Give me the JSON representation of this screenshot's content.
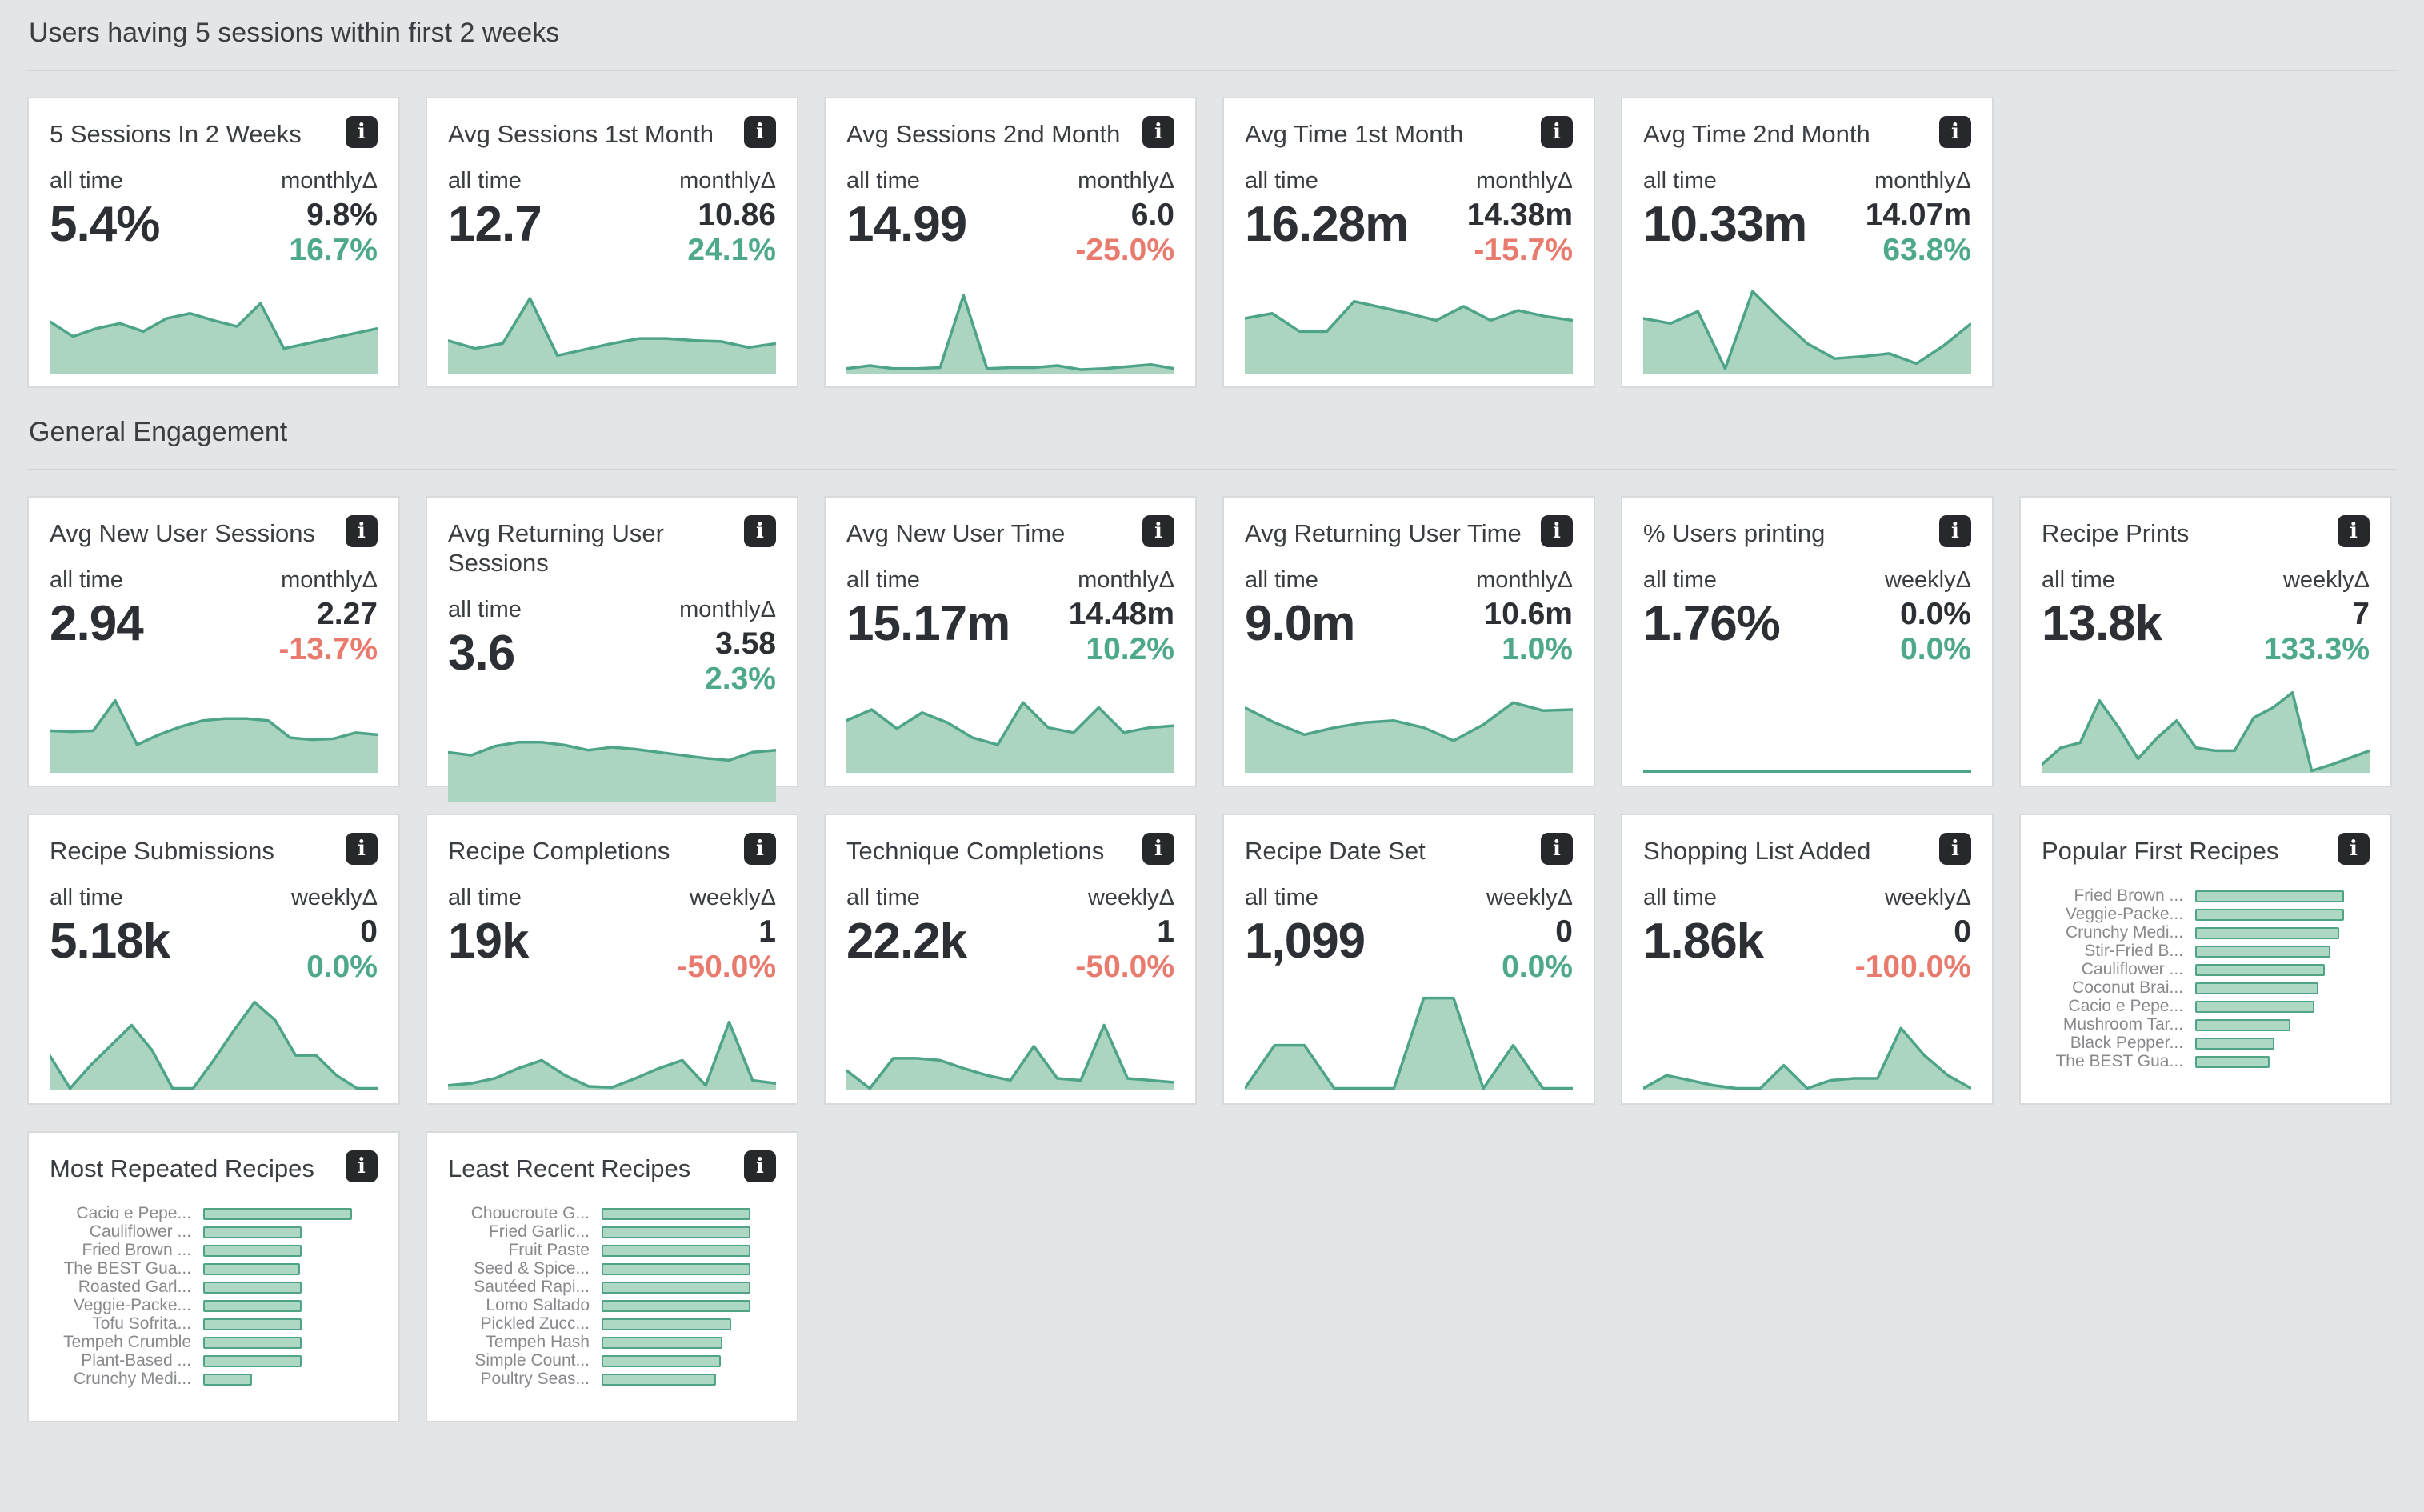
{
  "page": {
    "background": "#e4e5e7"
  },
  "colors": {
    "spark_stroke": "#4ea487",
    "spark_fill": "#abd4c1",
    "positive": "#4ea98a",
    "negative": "#e87a6e",
    "bar_fill": "#aed8c4",
    "bar_border": "#4fa485",
    "card_bg": "#ffffff",
    "text_dark": "#2c2f34",
    "text_label": "#3a3d41",
    "bar_label_gray": "#87898d"
  },
  "icons": {
    "info": "i"
  },
  "sections": [
    {
      "title": "Users having 5 sessions within first 2 weeks",
      "cards": [
        {
          "title": "5 Sessions In 2 Weeks",
          "period_label": "all time",
          "value": "5.4%",
          "delta_label": "monthlyΔ",
          "delta_value": "9.8%",
          "delta_pct": "16.7%",
          "delta_direction": "up",
          "chart": {
            "type": "area",
            "values": [
              0.52,
              0.37,
              0.45,
              0.5,
              0.42,
              0.55,
              0.6,
              0.53,
              0.47,
              0.7,
              0.25,
              0.3,
              0.35,
              0.4,
              0.45
            ]
          }
        },
        {
          "title": "Avg Sessions 1st Month",
          "period_label": "all time",
          "value": "12.7",
          "delta_label": "monthlyΔ",
          "delta_value": "10.86",
          "delta_pct": "24.1%",
          "delta_direction": "up",
          "chart": {
            "type": "area",
            "values": [
              0.33,
              0.25,
              0.3,
              0.75,
              0.18,
              0.24,
              0.3,
              0.35,
              0.35,
              0.33,
              0.32,
              0.26,
              0.3
            ]
          }
        },
        {
          "title": "Avg Sessions 2nd Month",
          "period_label": "all time",
          "value": "14.99",
          "delta_label": "monthlyΔ",
          "delta_value": "6.0",
          "delta_pct": "-25.0%",
          "delta_direction": "down",
          "chart": {
            "type": "area",
            "values": [
              0.05,
              0.08,
              0.05,
              0.05,
              0.06,
              0.78,
              0.05,
              0.06,
              0.06,
              0.08,
              0.04,
              0.05,
              0.07,
              0.09,
              0.05
            ]
          }
        },
        {
          "title": "Avg Time 1st Month",
          "period_label": "all time",
          "value": "16.28m",
          "delta_label": "monthlyΔ",
          "delta_value": "14.38m",
          "delta_pct": "-15.7%",
          "delta_direction": "down",
          "chart": {
            "type": "area",
            "values": [
              0.55,
              0.6,
              0.42,
              0.42,
              0.72,
              0.66,
              0.6,
              0.53,
              0.67,
              0.53,
              0.63,
              0.57,
              0.53
            ]
          }
        },
        {
          "title": "Avg Time 2nd Month",
          "period_label": "all time",
          "value": "10.33m",
          "delta_label": "monthlyΔ",
          "delta_value": "14.07m",
          "delta_pct": "63.8%",
          "delta_direction": "up",
          "chart": {
            "type": "area",
            "values": [
              0.55,
              0.5,
              0.62,
              0.05,
              0.82,
              0.55,
              0.3,
              0.15,
              0.17,
              0.2,
              0.1,
              0.28,
              0.5
            ]
          }
        }
      ]
    },
    {
      "title": "General Engagement",
      "cards": [
        {
          "title": "Avg New User Sessions",
          "period_label": "all time",
          "value": "2.94",
          "delta_label": "monthlyΔ",
          "delta_value": "2.27",
          "delta_pct": "-13.7%",
          "delta_direction": "down",
          "chart": {
            "type": "area",
            "values": [
              0.42,
              0.41,
              0.42,
              0.72,
              0.28,
              0.38,
              0.46,
              0.52,
              0.54,
              0.54,
              0.52,
              0.35,
              0.33,
              0.34,
              0.4,
              0.38
            ]
          }
        },
        {
          "title": "Avg Returning User Sessions",
          "period_label": "all time",
          "value": "3.6",
          "delta_label": "monthlyΔ",
          "delta_value": "3.58",
          "delta_pct": "2.3%",
          "delta_direction": "up",
          "chart": {
            "type": "area",
            "values": [
              0.5,
              0.47,
              0.56,
              0.6,
              0.6,
              0.57,
              0.52,
              0.55,
              0.53,
              0.5,
              0.47,
              0.44,
              0.42,
              0.5,
              0.52
            ]
          }
        },
        {
          "title": "Avg New User Time",
          "period_label": "all time",
          "value": "15.17m",
          "delta_label": "monthlyΔ",
          "delta_value": "14.48m",
          "delta_pct": "10.2%",
          "delta_direction": "up",
          "chart": {
            "type": "area",
            "values": [
              0.52,
              0.63,
              0.44,
              0.6,
              0.5,
              0.35,
              0.28,
              0.7,
              0.45,
              0.4,
              0.65,
              0.4,
              0.45,
              0.47
            ]
          }
        },
        {
          "title": "Avg Returning User Time",
          "period_label": "all time",
          "value": "9.0m",
          "delta_label": "monthlyΔ",
          "delta_value": "10.6m",
          "delta_pct": "1.0%",
          "delta_direction": "up",
          "chart": {
            "type": "area",
            "values": [
              0.65,
              0.5,
              0.38,
              0.45,
              0.5,
              0.52,
              0.45,
              0.32,
              0.48,
              0.7,
              0.62,
              0.63
            ]
          }
        },
        {
          "title": "% Users printing",
          "period_label": "all time",
          "value": "1.76%",
          "delta_label": "weeklyΔ",
          "delta_value": "0.0%",
          "delta_pct": "0.0%",
          "delta_direction": "up",
          "chart": {
            "type": "area",
            "values": [
              0.01,
              0.01,
              0.01,
              0.01,
              0.01,
              0.01,
              0.01,
              0.01,
              0.01,
              0.01,
              0.01,
              0.01
            ]
          }
        },
        {
          "title": "Recipe Prints",
          "period_label": "all time",
          "value": "13.8k",
          "delta_label": "weeklyΔ",
          "delta_value": "7",
          "delta_pct": "133.3%",
          "delta_direction": "up",
          "chart": {
            "type": "area",
            "values": [
              0.08,
              0.25,
              0.3,
              0.72,
              0.45,
              0.14,
              0.35,
              0.52,
              0.25,
              0.22,
              0.22,
              0.55,
              0.65,
              0.8,
              0.02,
              0.08,
              0.15,
              0.22
            ]
          }
        },
        {
          "title": "Recipe Submissions",
          "period_label": "all time",
          "value": "5.18k",
          "delta_label": "weeklyΔ",
          "delta_value": "0",
          "delta_pct": "0.0%",
          "delta_direction": "up",
          "chart": {
            "type": "area",
            "values": [
              0.35,
              0.02,
              0.25,
              0.45,
              0.65,
              0.4,
              0.02,
              0.02,
              0.3,
              0.6,
              0.88,
              0.7,
              0.35,
              0.35,
              0.15,
              0.02,
              0.02
            ]
          }
        },
        {
          "title": "Recipe Completions",
          "period_label": "all time",
          "value": "19k",
          "delta_label": "weeklyΔ",
          "delta_value": "1",
          "delta_pct": "-50.0%",
          "delta_direction": "down",
          "chart": {
            "type": "area",
            "values": [
              0.05,
              0.07,
              0.12,
              0.22,
              0.3,
              0.15,
              0.04,
              0.03,
              0.12,
              0.22,
              0.3,
              0.05,
              0.68,
              0.1,
              0.07
            ]
          }
        },
        {
          "title": "Technique Completions",
          "period_label": "all time",
          "value": "22.2k",
          "delta_label": "weeklyΔ",
          "delta_value": "1",
          "delta_pct": "-50.0%",
          "delta_direction": "down",
          "chart": {
            "type": "area",
            "values": [
              0.2,
              0.02,
              0.32,
              0.32,
              0.3,
              0.22,
              0.15,
              0.1,
              0.44,
              0.12,
              0.1,
              0.65,
              0.12,
              0.1,
              0.08
            ]
          }
        },
        {
          "title": "Recipe Date Set",
          "period_label": "all time",
          "value": "1,099",
          "delta_label": "weeklyΔ",
          "delta_value": "0",
          "delta_pct": "0.0%",
          "delta_direction": "up",
          "chart": {
            "type": "area",
            "values": [
              0.02,
              0.45,
              0.45,
              0.02,
              0.02,
              0.02,
              0.92,
              0.92,
              0.02,
              0.45,
              0.02,
              0.02
            ]
          }
        },
        {
          "title": "Shopping List Added",
          "period_label": "all time",
          "value": "1.86k",
          "delta_label": "weeklyΔ",
          "delta_value": "0",
          "delta_pct": "-100.0%",
          "delta_direction": "down",
          "chart": {
            "type": "area",
            "values": [
              0.02,
              0.15,
              0.1,
              0.05,
              0.02,
              0.02,
              0.25,
              0.02,
              0.1,
              0.12,
              0.12,
              0.62,
              0.35,
              0.15,
              0.02
            ]
          }
        },
        {
          "title": "Popular First Recipes",
          "chart": {
            "type": "bars",
            "items": [
              {
                "label": "Fried Brown ...",
                "value": 1.0
              },
              {
                "label": "Veggie-Packe...",
                "value": 1.0
              },
              {
                "label": "Crunchy Medi...",
                "value": 0.97
              },
              {
                "label": "Stir-Fried B...",
                "value": 0.91
              },
              {
                "label": "Cauliflower ...",
                "value": 0.87
              },
              {
                "label": "Coconut Brai...",
                "value": 0.83
              },
              {
                "label": "Cacio e Pepe...",
                "value": 0.8
              },
              {
                "label": "Mushroom Tar...",
                "value": 0.64
              },
              {
                "label": "Black Pepper...",
                "value": 0.53
              },
              {
                "label": "The BEST Gua...",
                "value": 0.5
              }
            ]
          }
        },
        {
          "title": "Most Repeated Recipes",
          "chart": {
            "type": "bars",
            "items": [
              {
                "label": "Cacio e Pepe...",
                "value": 1.0
              },
              {
                "label": "Cauliflower ...",
                "value": 0.66
              },
              {
                "label": "Fried Brown ...",
                "value": 0.66
              },
              {
                "label": "The BEST Gua...",
                "value": 0.65
              },
              {
                "label": "Roasted Garl...",
                "value": 0.66
              },
              {
                "label": "Veggie-Packe...",
                "value": 0.66
              },
              {
                "label": "Tofu Sofrita...",
                "value": 0.66
              },
              {
                "label": "Tempeh Crumble",
                "value": 0.66
              },
              {
                "label": "Plant-Based ...",
                "value": 0.66
              },
              {
                "label": "Crunchy Medi...",
                "value": 0.33
              }
            ]
          }
        },
        {
          "title": "Least Recent Recipes",
          "chart": {
            "type": "bars",
            "items": [
              {
                "label": "Choucroute G...",
                "value": 1.0
              },
              {
                "label": "Fried Garlic...",
                "value": 1.0
              },
              {
                "label": "Fruit Paste",
                "value": 1.0
              },
              {
                "label": "Seed & Spice...",
                "value": 1.0
              },
              {
                "label": "Sautéed Rapi...",
                "value": 1.0
              },
              {
                "label": "Lomo Saltado",
                "value": 1.0
              },
              {
                "label": "Pickled Zucc...",
                "value": 0.87
              },
              {
                "label": "Tempeh Hash",
                "value": 0.81
              },
              {
                "label": "Simple Count...",
                "value": 0.8
              },
              {
                "label": "Poultry Seas...",
                "value": 0.77
              }
            ]
          }
        }
      ]
    }
  ]
}
